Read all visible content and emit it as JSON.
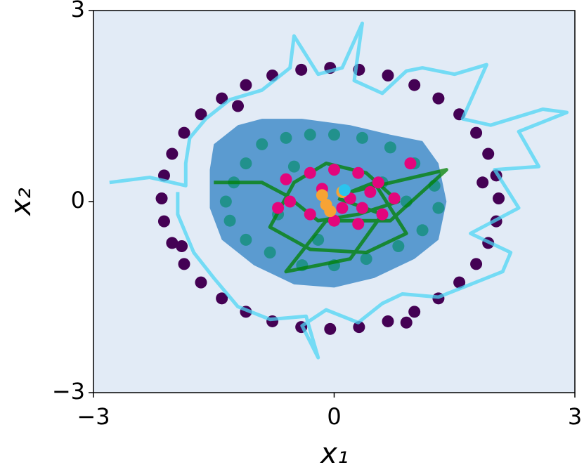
{
  "chart_data": {
    "type": "scatter",
    "xlabel": "x₁",
    "ylabel": "x₂",
    "xlim": [
      -3,
      3
    ],
    "ylim": [
      -3,
      3
    ],
    "xticks": [
      {
        "value": -3,
        "label": "−3"
      },
      0,
      3
    ],
    "yticks": [
      {
        "value": -3,
        "label": "−3"
      },
      0,
      3
    ],
    "background": "#e2ebf6",
    "series": [
      {
        "style": "region",
        "color": "#5b9bd0",
        "x": [
          -1.5,
          -1.2,
          -0.9,
          -0.4,
          0.2,
          0.7,
          1.1,
          1.3,
          1.4,
          1.3,
          1.0,
          0.5,
          0.0,
          -0.5,
          -1.0,
          -1.4,
          -1.55,
          -1.55
        ],
        "values": [
          0.9,
          1.2,
          1.3,
          1.3,
          1.2,
          1.05,
          0.95,
          0.6,
          0.0,
          -0.6,
          -0.9,
          -1.2,
          -1.35,
          -1.3,
          -1.0,
          -0.6,
          -0.1,
          0.5
        ]
      },
      {
        "style": "points",
        "color": "#440154",
        "x": [
          2.05,
          2.02,
          1.92,
          1.77,
          1.56,
          1.3,
          1.0,
          0.67,
          0.31,
          -0.05,
          -0.41,
          -0.77,
          -1.1,
          -1.4,
          -1.66,
          -1.87,
          -2.02,
          -2.12,
          -2.15,
          -2.12,
          -2.02,
          -1.87,
          -1.66,
          -1.4,
          -1.1,
          -0.77,
          -0.41,
          -0.05,
          0.31,
          0.67,
          1.0,
          1.3,
          1.56,
          1.77,
          1.92,
          2.02,
          -1.9,
          -1.2,
          0.9,
          1.85
        ],
        "values": [
          0.05,
          0.41,
          0.75,
          1.08,
          1.37,
          1.62,
          1.83,
          1.98,
          2.07,
          2.1,
          2.07,
          1.98,
          1.83,
          1.62,
          1.37,
          1.08,
          0.75,
          0.41,
          0.05,
          -0.31,
          -0.65,
          -0.98,
          -1.27,
          -1.52,
          -1.73,
          -1.88,
          -1.97,
          -2.0,
          -1.97,
          -1.88,
          -1.73,
          -1.52,
          -1.27,
          -0.98,
          -0.65,
          -0.31,
          -0.7,
          1.5,
          -1.9,
          0.3
        ]
      },
      {
        "style": "line",
        "color": "#4dd6f4",
        "x": [
          -2.8,
          -2.3,
          -1.85,
          -1.85,
          -1.8,
          -1.6,
          -1.3,
          -0.9,
          -0.55,
          -0.5,
          -0.2,
          0.1,
          0.35,
          0.25,
          0.6,
          0.9,
          1.1,
          1.5,
          1.9,
          1.6,
          1.95,
          2.6,
          2.9,
          2.3,
          2.55,
          2.0,
          2.3,
          1.7,
          2.2,
          2.1,
          1.6,
          1.3,
          0.85,
          0.6,
          0.3,
          -0.1,
          -0.4,
          -0.2,
          -0.35,
          -0.8,
          -1.2,
          -1.5,
          -1.75,
          -1.95,
          -1.95
        ],
        "values": [
          0.3,
          0.38,
          0.25,
          0.6,
          1.0,
          1.3,
          1.6,
          1.75,
          2.1,
          2.6,
          2.0,
          2.1,
          2.8,
          1.9,
          1.7,
          2.05,
          2.1,
          2.0,
          2.15,
          1.3,
          1.2,
          1.45,
          1.4,
          1.1,
          0.55,
          0.5,
          -0.1,
          -0.5,
          -0.8,
          -1.1,
          -1.35,
          -1.5,
          -1.45,
          -1.6,
          -1.9,
          -1.7,
          -1.95,
          -2.45,
          -1.8,
          -1.85,
          -1.65,
          -1.2,
          -0.8,
          -0.2,
          0.15
        ]
      },
      {
        "style": "points",
        "color": "#21918c",
        "x": [
          -1.1,
          -0.9,
          -0.6,
          -0.3,
          0.0,
          0.35,
          0.7,
          1.0,
          1.25,
          1.3,
          1.1,
          0.8,
          0.4,
          0.0,
          -0.4,
          -0.8,
          -1.1,
          -1.3,
          -1.35,
          -1.25,
          -0.5,
          -0.2,
          0.6,
          -0.7,
          0.9
        ],
        "values": [
          0.6,
          0.9,
          1.0,
          1.05,
          1.05,
          1.0,
          0.85,
          0.6,
          0.25,
          -0.1,
          -0.45,
          -0.7,
          -0.9,
          -1.0,
          -1.0,
          -0.8,
          -0.6,
          -0.3,
          0.0,
          0.3,
          0.55,
          -0.6,
          0.3,
          -0.2,
          0.0
        ]
      },
      {
        "style": "line",
        "color": "#008000",
        "x": [
          -1.5,
          -0.9,
          -0.6,
          -0.2,
          0.3,
          0.8,
          0.4,
          -0.1,
          -0.5,
          -0.8,
          -0.3,
          0.4,
          0.9,
          0.5,
          0.2,
          1.4,
          0.7,
          -0.1,
          -0.6,
          0.2,
          0.6,
          0.05
        ],
        "values": [
          0.3,
          0.3,
          0.1,
          -0.3,
          -0.2,
          0.0,
          0.45,
          0.6,
          0.3,
          -0.4,
          -0.75,
          -0.8,
          -0.5,
          0.3,
          0.15,
          0.5,
          -0.3,
          -0.3,
          -1.1,
          -0.9,
          -0.2,
          0.05
        ]
      },
      {
        "style": "points",
        "color": "#e3067c",
        "x": [
          -0.6,
          -0.3,
          0.0,
          0.3,
          0.55,
          0.75,
          0.6,
          0.3,
          0.0,
          -0.3,
          -0.55,
          0.2,
          0.1,
          0.45,
          -0.15,
          0.35,
          0.95,
          -0.7
        ],
        "values": [
          0.35,
          0.45,
          0.5,
          0.45,
          0.3,
          0.05,
          -0.2,
          -0.35,
          -0.3,
          -0.2,
          0.0,
          0.05,
          -0.1,
          0.15,
          0.2,
          -0.1,
          0.6,
          -0.1
        ]
      },
      {
        "style": "points",
        "color": "#f7a334",
        "x": [
          -0.15,
          -0.1,
          -0.05,
          0.1
        ],
        "values": [
          0.1,
          -0.05,
          -0.15,
          0.15
        ]
      },
      {
        "style": "points",
        "color": "#2bc4ee",
        "x": [
          0.13
        ],
        "values": [
          0.18
        ]
      }
    ]
  }
}
